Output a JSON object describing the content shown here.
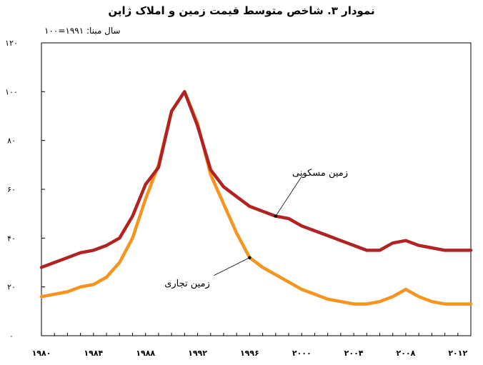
{
  "chart_data": {
    "type": "line",
    "title": "نمودار ۳. شاخص متوسط قیمت زمین و املاک ژاپن",
    "subtitle": "سال مبنا: ۱۹۹۱=۱۰۰",
    "xlabel": "",
    "ylabel": "",
    "xlim": [
      1980,
      2013
    ],
    "ylim": [
      0,
      120
    ],
    "x": [
      1980,
      1981,
      1982,
      1983,
      1984,
      1985,
      1986,
      1987,
      1988,
      1989,
      1990,
      1991,
      1992,
      1993,
      1994,
      1995,
      1996,
      1997,
      1998,
      1999,
      2000,
      2001,
      2002,
      2003,
      2004,
      2005,
      2006,
      2007,
      2008,
      2009,
      2010,
      2011,
      2012,
      2013
    ],
    "x_tick_values": [
      1980,
      1984,
      1988,
      1992,
      1996,
      2000,
      2004,
      2008,
      2012
    ],
    "x_tick_labels": [
      "۱۹۸۰",
      "۱۹۸۴",
      "۱۹۸۸",
      "۱۹۹۲",
      "۱۹۹۶",
      "۲۰۰۰",
      "۲۰۰۴",
      "۲۰۰۸",
      "۲۰۱۲"
    ],
    "y_tick_values": [
      0,
      20,
      40,
      60,
      80,
      100,
      120
    ],
    "y_tick_labels": [
      "۰",
      "۲۰",
      "۴۰",
      "۶۰",
      "۸۰",
      "۱۰۰",
      "۱۲۰"
    ],
    "series": [
      {
        "name": "زمین مسکونی",
        "color": "#b22222",
        "values": [
          28,
          30,
          32,
          34,
          35,
          37,
          40,
          49,
          62,
          69,
          92,
          100,
          86,
          68,
          61,
          57,
          53,
          51,
          49,
          48,
          45,
          43,
          41,
          39,
          37,
          35,
          35,
          38,
          39,
          37,
          36,
          35,
          35,
          35
        ]
      },
      {
        "name": "زمین تجاری",
        "color": "#f7941d",
        "values": [
          16,
          17,
          18,
          20,
          21,
          24,
          30,
          40,
          56,
          70,
          92,
          100,
          87,
          66,
          54,
          42,
          32,
          28,
          25,
          22,
          19,
          17,
          15,
          14,
          13,
          13,
          14,
          16,
          19,
          16,
          14,
          13,
          13,
          13
        ]
      }
    ],
    "annotations": [
      {
        "label": "زمین مسکونی",
        "series": 0,
        "x": 1998
      },
      {
        "label": "زمین تجاری",
        "series": 1,
        "x": 1996
      }
    ],
    "grid": false,
    "legend": "none"
  }
}
